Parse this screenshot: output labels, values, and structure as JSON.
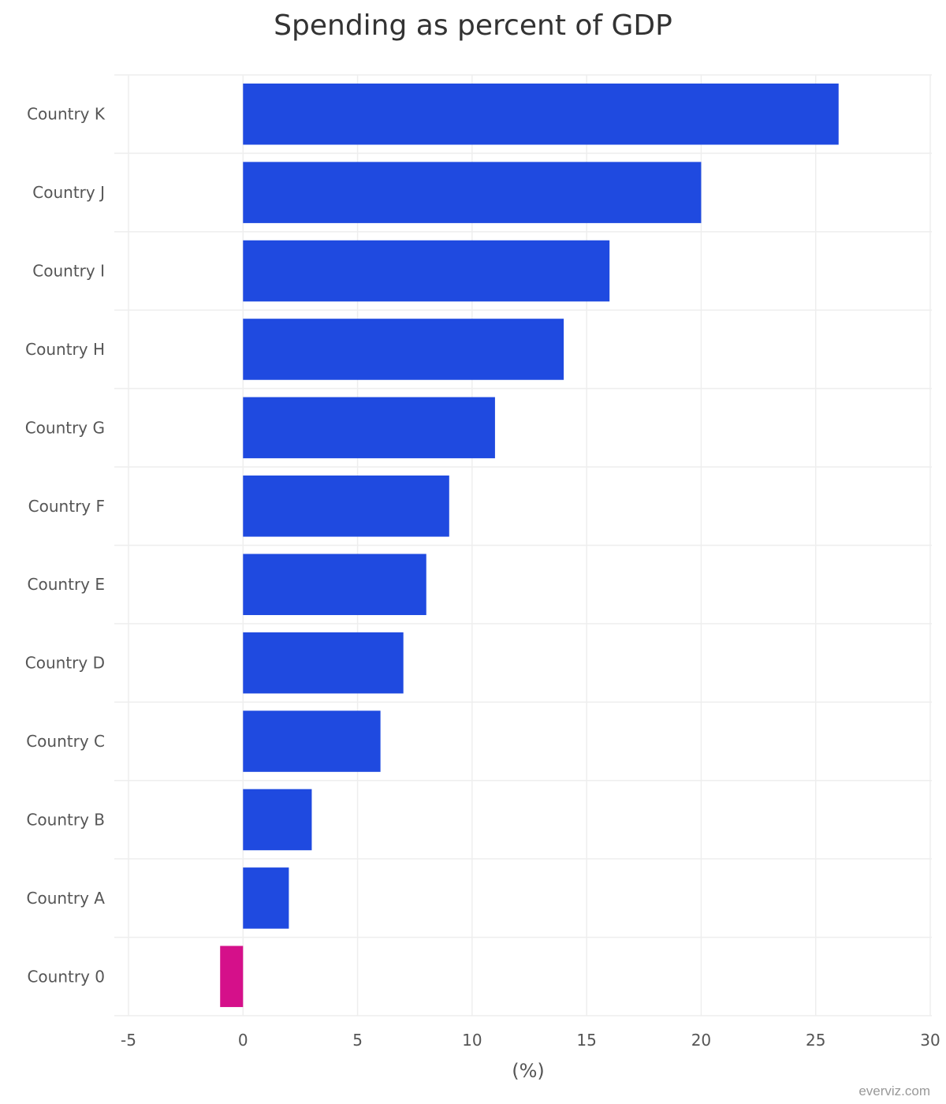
{
  "chart_data": {
    "type": "bar",
    "orientation": "horizontal",
    "title": "Spending as percent of GDP",
    "xlabel": "(%)",
    "ylabel": "",
    "xlim": [
      -5,
      30
    ],
    "x_ticks": [
      "-5",
      "0",
      "5",
      "10",
      "15",
      "20",
      "25",
      "30"
    ],
    "grid": true,
    "legend": "none",
    "categories": [
      "Country K",
      "Country J",
      "Country I",
      "Country H",
      "Country G",
      "Country F",
      "Country E",
      "Country D",
      "Country C",
      "Country B",
      "Country A",
      "Country 0"
    ],
    "values": [
      26,
      20,
      16,
      14,
      11,
      9,
      8,
      7,
      6,
      3,
      2,
      -1
    ],
    "colors": {
      "positive": "#1f4ae0",
      "negative": "#d5108a"
    }
  },
  "credit": "everviz.com"
}
